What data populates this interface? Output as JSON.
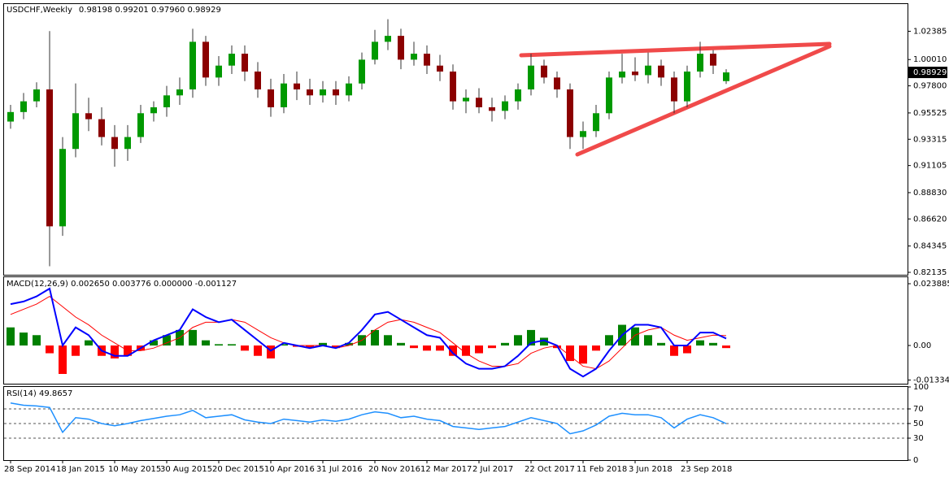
{
  "chart_data": [
    {
      "type": "candlestick",
      "title": "USDCHF,Weekly",
      "subtitle": "0.98198 0.99201 0.97960 0.98929",
      "open": [
        0.948,
        0.956,
        0.965,
        0.975,
        0.86,
        0.925,
        0.955,
        0.95,
        0.935,
        0.925,
        0.935,
        0.955,
        0.96,
        0.97,
        0.975,
        1.015,
        0.985,
        0.995,
        1.005,
        0.99,
        0.975,
        0.96,
        0.98,
        0.975,
        0.97,
        0.975,
        0.97,
        0.98,
        1.0,
        1.015,
        1.02,
        1.0,
        1.005,
        0.995,
        0.99,
        0.965,
        0.968,
        0.96,
        0.957,
        0.965,
        0.975,
        0.995,
        0.985,
        0.975,
        0.935,
        0.94,
        0.955,
        0.985,
        0.99,
        0.987,
        0.995,
        0.985,
        0.965,
        0.99,
        1.005,
        0.98198
      ],
      "high": [
        0.962,
        0.972,
        0.981,
        1.024,
        0.935,
        0.98,
        0.968,
        0.96,
        0.945,
        0.945,
        0.962,
        0.965,
        0.978,
        0.985,
        1.026,
        1.02,
        1.003,
        1.012,
        1.012,
        0.998,
        0.984,
        0.988,
        0.99,
        0.984,
        0.982,
        0.982,
        0.986,
        1.006,
        1.025,
        1.034,
        1.026,
        1.015,
        1.012,
        1.004,
        0.996,
        0.975,
        0.976,
        0.968,
        0.97,
        0.98,
        1.005,
        1.0,
        0.99,
        0.98,
        0.948,
        0.962,
        0.99,
        1.005,
        1.002,
        1.006,
        1.0,
        0.99,
        0.995,
        1.015,
        1.008,
        0.99201
      ],
      "low": [
        0.942,
        0.95,
        0.96,
        0.8265,
        0.852,
        0.918,
        0.94,
        0.928,
        0.91,
        0.915,
        0.93,
        0.948,
        0.952,
        0.962,
        0.968,
        0.978,
        0.978,
        0.988,
        0.982,
        0.968,
        0.952,
        0.955,
        0.966,
        0.962,
        0.964,
        0.962,
        0.965,
        0.975,
        0.996,
        1.008,
        0.992,
        0.995,
        0.988,
        0.982,
        0.958,
        0.955,
        0.955,
        0.948,
        0.95,
        0.958,
        0.97,
        0.98,
        0.968,
        0.925,
        0.925,
        0.935,
        0.95,
        0.98,
        0.982,
        0.98,
        0.978,
        0.955,
        0.96,
        0.985,
        0.988,
        0.9796
      ],
      "close": [
        0.956,
        0.965,
        0.975,
        0.86,
        0.925,
        0.955,
        0.95,
        0.935,
        0.925,
        0.935,
        0.955,
        0.96,
        0.97,
        0.975,
        1.015,
        0.985,
        0.995,
        1.005,
        0.99,
        0.975,
        0.96,
        0.98,
        0.975,
        0.97,
        0.975,
        0.97,
        0.98,
        1.0,
        1.015,
        1.02,
        1.0,
        1.005,
        0.995,
        0.99,
        0.965,
        0.968,
        0.96,
        0.957,
        0.965,
        0.975,
        0.995,
        0.985,
        0.975,
        0.935,
        0.94,
        0.955,
        0.985,
        0.99,
        0.987,
        0.995,
        0.985,
        0.965,
        0.99,
        1.005,
        0.995,
        0.98929
      ],
      "up_color": "#009900",
      "down_color": "#8b0000",
      "wick_color": "#333333",
      "last_price": 0.98929,
      "ylim": [
        0.8193,
        1.0467
      ],
      "yticks": [
        1.02385,
        {
          "value": 1.0001,
          "label": "1.00010"
        },
        {
          "value": 0.978,
          "label": "0.97800"
        },
        0.95525,
        0.93315,
        0.91105,
        {
          "value": 0.8883,
          "label": "0.88830"
        },
        {
          "value": 0.8662,
          "label": "0.86620"
        },
        0.84345,
        0.82135
      ],
      "xlim": [
        -0.5,
        68.9
      ],
      "xticks": [
        {
          "value": 0,
          "label": "28 Sep 2014"
        },
        {
          "value": 4,
          "label": "18 Jan 2015"
        },
        {
          "value": 8,
          "label": "10 May 2015"
        },
        {
          "value": 12,
          "label": "30 Aug 2015"
        },
        {
          "value": 16,
          "label": "20 Dec 2015"
        },
        {
          "value": 20,
          "label": "10 Apr 2016"
        },
        {
          "value": 24,
          "label": "31 Jul 2016"
        },
        {
          "value": 28,
          "label": "20 Nov 2016"
        },
        {
          "value": 32,
          "label": "12 Mar 2017"
        },
        {
          "value": 36,
          "label": "2 Jul 2017"
        },
        {
          "value": 40,
          "label": "22 Oct 2017"
        },
        {
          "value": 44,
          "label": "11 Feb 2018"
        },
        {
          "value": 48,
          "label": "3 Jun 2018"
        },
        {
          "value": 52,
          "label": "23 Sep 2018"
        }
      ]
    },
    {
      "type": "macd",
      "title": "MACD(12,26,9) 0.002650 0.003776 0.000000 -0.001127",
      "histogram": [
        0.007,
        0.005,
        0.004,
        -0.003,
        -0.011,
        -0.004,
        0.002,
        -0.004,
        -0.005,
        -0.004,
        -0.002,
        0.002,
        0.004,
        0.006,
        0.006,
        0.002,
        0.0005,
        0.0005,
        -0.002,
        -0.004,
        -0.005,
        0.0005,
        -0.0005,
        -0.001,
        0.001,
        -0.001,
        0.001,
        0.004,
        0.006,
        0.004,
        0.001,
        -0.001,
        -0.002,
        -0.002,
        -0.004,
        -0.004,
        -0.003,
        -0.001,
        0.001,
        0.004,
        0.006,
        0.003,
        -0.001,
        -0.006,
        -0.007,
        -0.002,
        0.004,
        0.008,
        0.007,
        0.004,
        0.001,
        -0.004,
        -0.003,
        0.002,
        0.001,
        -0.001
      ],
      "macd": [
        0.016,
        0.017,
        0.019,
        0.022,
        0.0,
        0.007,
        0.004,
        -0.002,
        -0.004,
        -0.004,
        -0.001,
        0.002,
        0.004,
        0.006,
        0.014,
        0.011,
        0.009,
        0.01,
        0.006,
        0.002,
        -0.002,
        0.001,
        0.0,
        -0.001,
        0.0,
        -0.001,
        0.001,
        0.006,
        0.012,
        0.013,
        0.01,
        0.007,
        0.004,
        0.003,
        -0.003,
        -0.007,
        -0.009,
        -0.009,
        -0.008,
        -0.004,
        0.001,
        0.002,
        0.0,
        -0.009,
        -0.012,
        -0.009,
        -0.002,
        0.004,
        0.008,
        0.008,
        0.007,
        0.0,
        0.0,
        0.005,
        0.005,
        0.0027
      ],
      "signal": [
        0.012,
        0.014,
        0.016,
        0.019,
        0.015,
        0.011,
        0.008,
        0.004,
        0.001,
        -0.002,
        -0.002,
        -0.001,
        0.001,
        0.003,
        0.007,
        0.009,
        0.009,
        0.01,
        0.009,
        0.006,
        0.003,
        0.001,
        0.0,
        0.0,
        0.0,
        -0.001,
        0.0,
        0.002,
        0.006,
        0.009,
        0.01,
        0.009,
        0.007,
        0.005,
        0.001,
        -0.003,
        -0.006,
        -0.008,
        -0.008,
        -0.007,
        -0.003,
        -0.001,
        0.0,
        -0.004,
        -0.008,
        -0.009,
        -0.006,
        -0.001,
        0.004,
        0.006,
        0.007,
        0.004,
        0.002,
        0.003,
        0.004,
        0.0038
      ],
      "macd_color": "#0000ff",
      "signal_color": "#ff0000",
      "positive_color": "#008000",
      "negative_color": "#ff0000",
      "ylim": [
        -0.01477,
        0.0264
      ],
      "yticks": [
        0.023885,
        {
          "value": 0,
          "label": "0.00"
        },
        -0.013344
      ]
    },
    {
      "type": "rsi",
      "title": "RSI(14) 49.8657",
      "values": [
        78,
        75,
        74,
        72,
        38,
        58,
        56,
        50,
        47,
        50,
        54,
        57,
        60,
        62,
        68,
        58,
        60,
        62,
        55,
        52,
        50,
        56,
        54,
        52,
        55,
        53,
        56,
        62,
        66,
        64,
        58,
        60,
        56,
        54,
        46,
        44,
        42,
        44,
        46,
        52,
        58,
        54,
        50,
        36,
        40,
        48,
        60,
        64,
        62,
        62,
        58,
        44,
        56,
        62,
        58,
        49.8657
      ],
      "color": "#1e90ff",
      "grid": true,
      "ylim": [
        0,
        100
      ],
      "yticks": [
        100,
        70,
        50,
        30,
        0
      ]
    }
  ]
}
